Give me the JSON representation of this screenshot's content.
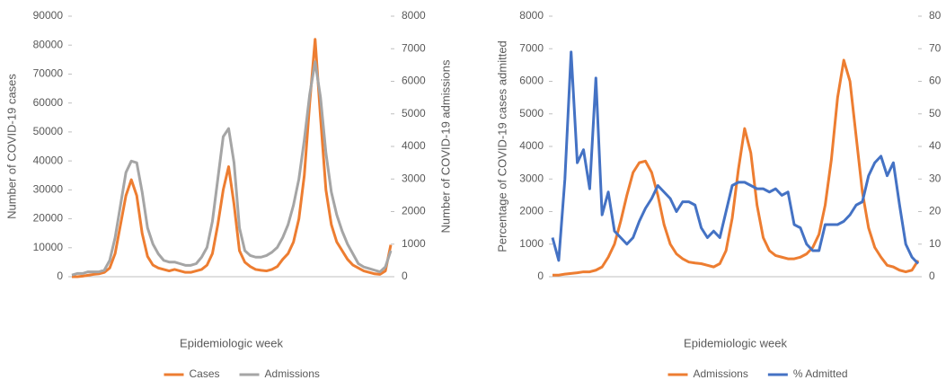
{
  "chart_data": [
    {
      "type": "line",
      "x_label": "Epidemiologic week",
      "y_label": "Number of COVID-19 cases",
      "y2_label": "Number of COVID-19 admissions",
      "categories": [
        null,
        null,
        null,
        null,
        null,
        null,
        null,
        null,
        null,
        null,
        null,
        null,
        null,
        null,
        null,
        null,
        null,
        null,
        null,
        null,
        null,
        null,
        null,
        null,
        null,
        null,
        null,
        null,
        null,
        null,
        null,
        null,
        null,
        null,
        null,
        null,
        null,
        null,
        null,
        null,
        null,
        null,
        null,
        null,
        null,
        null,
        null,
        null,
        null,
        null,
        null,
        null,
        null,
        null,
        null,
        null,
        null,
        null,
        null,
        null
      ],
      "ylim": [
        0,
        90000
      ],
      "yticks": [
        0,
        10000,
        20000,
        30000,
        40000,
        50000,
        60000,
        70000,
        80000,
        90000
      ],
      "y2lim": [
        0,
        8000
      ],
      "y2ticks": [
        0,
        1000,
        2000,
        3000,
        4000,
        5000,
        6000,
        7000,
        8000
      ],
      "series": [
        {
          "name": "Cases",
          "color": "#ed7d31",
          "values": [
            0,
            0,
            200,
            500,
            800,
            1000,
            1500,
            3000,
            8000,
            18000,
            28000,
            33500,
            28000,
            15000,
            7000,
            4000,
            3000,
            2500,
            2000,
            2500,
            2000,
            1500,
            1500,
            2000,
            2500,
            4000,
            8000,
            18000,
            30000,
            38000,
            25000,
            9000,
            5000,
            3500,
            2500,
            2200,
            2000,
            2500,
            3500,
            6000,
            8000,
            12000,
            20000,
            35000,
            60000,
            82000,
            55000,
            30000,
            18000,
            12000,
            9000,
            6000,
            4000,
            3000,
            2000,
            1500,
            1000,
            800,
            2000,
            11000
          ]
        },
        {
          "name": "Admissions",
          "color": "#a5a5a5",
          "axis": "y2",
          "values": [
            50,
            100,
            100,
            150,
            150,
            150,
            200,
            500,
            1200,
            2200,
            3200,
            3550,
            3500,
            2600,
            1500,
            1000,
            700,
            500,
            450,
            450,
            400,
            350,
            350,
            400,
            600,
            900,
            1700,
            3000,
            4300,
            4550,
            3500,
            1500,
            800,
            650,
            600,
            600,
            650,
            750,
            900,
            1200,
            1600,
            2200,
            3000,
            4200,
            5600,
            6600,
            5500,
            3800,
            2600,
            1900,
            1400,
            1000,
            700,
            400,
            300,
            250,
            200,
            150,
            300,
            800
          ]
        }
      ]
    },
    {
      "type": "line",
      "x_label": "Epidemiologic week",
      "y_label": "Percentage of COVID-19 cases admitted",
      "categories": [
        null,
        null,
        null,
        null,
        null,
        null,
        null,
        null,
        null,
        null,
        null,
        null,
        null,
        null,
        null,
        null,
        null,
        null,
        null,
        null,
        null,
        null,
        null,
        null,
        null,
        null,
        null,
        null,
        null,
        null,
        null,
        null,
        null,
        null,
        null,
        null,
        null,
        null,
        null,
        null,
        null,
        null,
        null,
        null,
        null,
        null,
        null,
        null,
        null,
        null,
        null,
        null,
        null,
        null,
        null,
        null,
        null,
        null,
        null,
        null
      ],
      "ylim": [
        0,
        8000
      ],
      "yticks": [
        0,
        1000,
        2000,
        3000,
        4000,
        5000,
        6000,
        7000,
        8000
      ],
      "y2lim": [
        0,
        80
      ],
      "y2ticks": [
        0,
        10,
        20,
        30,
        40,
        50,
        60,
        70,
        80
      ],
      "series": [
        {
          "name": "Admissions",
          "color": "#ed7d31",
          "values": [
            50,
            50,
            80,
            100,
            120,
            150,
            150,
            200,
            300,
            600,
            1000,
            1700,
            2500,
            3200,
            3500,
            3550,
            3200,
            2500,
            1600,
            1000,
            700,
            550,
            450,
            420,
            400,
            350,
            300,
            400,
            800,
            1800,
            3300,
            4550,
            3800,
            2200,
            1200,
            800,
            650,
            600,
            550,
            550,
            600,
            700,
            900,
            1300,
            2200,
            3600,
            5500,
            6650,
            6000,
            4300,
            2600,
            1500,
            900,
            600,
            350,
            300,
            200,
            150,
            200,
            500
          ]
        },
        {
          "name": "% Admitted",
          "color": "#4472c4",
          "axis": "y2",
          "values": [
            12,
            5,
            30,
            69,
            35,
            39,
            27,
            61,
            19,
            26,
            14,
            12,
            10,
            12,
            17,
            21,
            24,
            28,
            26,
            24,
            20,
            23,
            23,
            22,
            15,
            12,
            14,
            12,
            20,
            28,
            29,
            29,
            28,
            27,
            27,
            26,
            27,
            25,
            26,
            16,
            15,
            10,
            8,
            8,
            16,
            16,
            16,
            17,
            19,
            22,
            23,
            31,
            35,
            37,
            31,
            35,
            22,
            10,
            6,
            4
          ]
        }
      ]
    }
  ]
}
